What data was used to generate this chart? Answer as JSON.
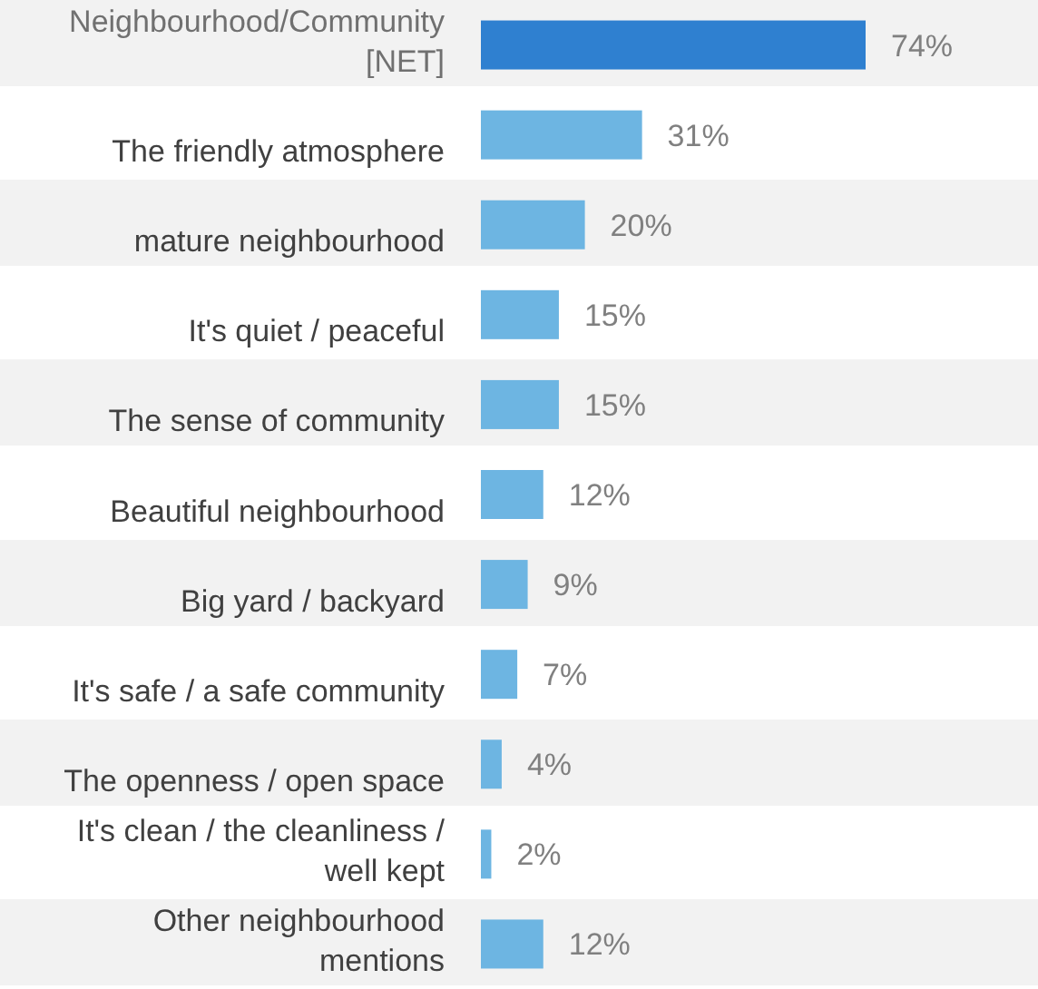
{
  "chart_data": {
    "type": "bar",
    "orientation": "horizontal",
    "categories": [
      "Neighbourhood/Community [NET]",
      "The friendly atmosphere",
      "mature neighbourhood",
      "It's quiet / peaceful",
      "The sense of community",
      "Beautiful neighbourhood",
      "Big yard / backyard",
      "It's safe / a safe community",
      "The openness / open space",
      "It's clean / the cleanliness / well kept",
      "Other neighbourhood mentions"
    ],
    "values": [
      74,
      31,
      20,
      15,
      15,
      12,
      9,
      7,
      4,
      2,
      12
    ],
    "value_labels": [
      "74%",
      "31%",
      "20%",
      "15%",
      "15%",
      "12%",
      "9%",
      "7%",
      "4%",
      "2%",
      "12%"
    ],
    "colors": [
      "#2f80d0",
      "#6db5e2",
      "#6db5e2",
      "#6db5e2",
      "#6db5e2",
      "#6db5e2",
      "#6db5e2",
      "#6db5e2",
      "#6db5e2",
      "#6db5e2",
      "#6db5e2"
    ]
  }
}
